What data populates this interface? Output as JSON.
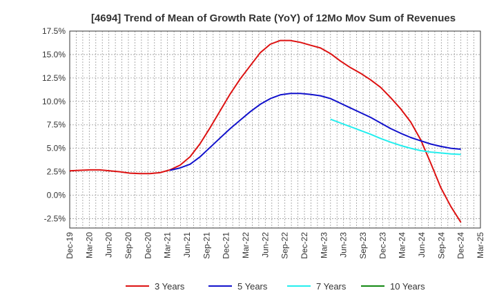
{
  "chart_data": {
    "type": "line",
    "title": "[4694]  Trend of Mean of Growth Rate (YoY) of 12Mo Mov Sum of Revenues",
    "xlabel": "",
    "ylabel": "",
    "ylim": [
      -3.5,
      17.5
    ],
    "yticks": [
      "17.5%",
      "15.0%",
      "12.5%",
      "10.0%",
      "7.5%",
      "5.0%",
      "2.5%",
      "0.0%",
      "-2.5%"
    ],
    "ytick_values": [
      17.5,
      15.0,
      12.5,
      10.0,
      7.5,
      5.0,
      2.5,
      0.0,
      -2.5
    ],
    "x_tick_labels": [
      "Dec-19",
      "Mar-20",
      "Jun-20",
      "Sep-20",
      "Dec-20",
      "Mar-21",
      "Jun-21",
      "Sep-21",
      "Dec-21",
      "Mar-22",
      "Jun-22",
      "Sep-22",
      "Dec-22",
      "Mar-23",
      "Jun-23",
      "Sep-23",
      "Dec-23",
      "Mar-24",
      "Jun-24",
      "Sep-24",
      "Dec-24",
      "Mar-25"
    ],
    "grid": true,
    "legend_position": "bottom",
    "series": [
      {
        "name": "3 Years",
        "color": "#dd1111",
        "values": [
          2.6,
          2.65,
          2.7,
          2.7,
          2.6,
          2.5,
          2.35,
          2.3,
          2.3,
          2.4,
          2.7,
          3.2,
          4.1,
          5.5,
          7.2,
          9.0,
          10.8,
          12.4,
          13.8,
          15.2,
          16.1,
          16.5,
          16.5,
          16.3,
          16.0,
          15.7,
          15.1,
          14.3,
          13.6,
          13.0,
          12.3,
          11.5,
          10.4,
          9.2,
          7.8,
          5.9,
          3.4,
          0.8,
          -1.2,
          -2.9
        ],
        "start_index": 0
      },
      {
        "name": "5 Years",
        "color": "#1111cc",
        "values": [
          2.65,
          2.9,
          3.3,
          4.1,
          5.1,
          6.1,
          7.1,
          8.0,
          8.9,
          9.7,
          10.3,
          10.7,
          10.85,
          10.85,
          10.75,
          10.6,
          10.3,
          9.8,
          9.3,
          8.8,
          8.3,
          7.7,
          7.1,
          6.6,
          6.15,
          5.8,
          5.45,
          5.2,
          5.0,
          4.9
        ],
        "start_index": 10
      },
      {
        "name": "7 Years",
        "color": "#22eeee",
        "values": [
          8.1,
          7.7,
          7.3,
          6.9,
          6.5,
          6.05,
          5.65,
          5.3,
          5.0,
          4.75,
          4.6,
          4.5,
          4.4,
          4.35
        ],
        "start_index": 26
      },
      {
        "name": "10 Years",
        "color": "#118811",
        "values": [],
        "start_index": 0
      }
    ]
  }
}
